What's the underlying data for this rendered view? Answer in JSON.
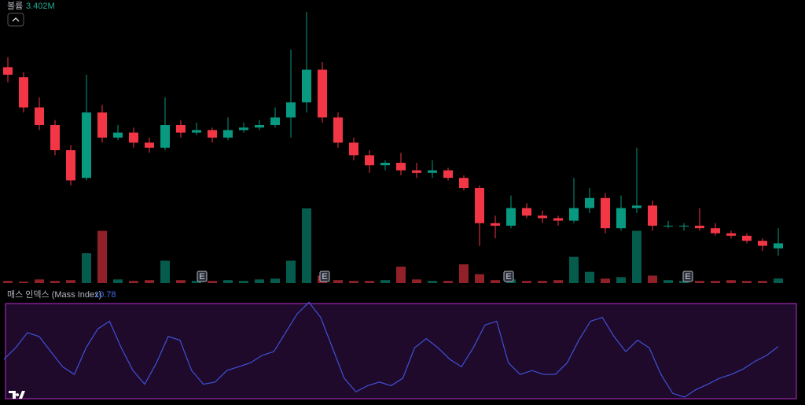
{
  "chart_data": [
    {
      "type": "candlestick",
      "ylim": [
        0,
        100
      ],
      "up_color": "#089981",
      "down_color": "#f23645",
      "ohlc": [
        [
          78,
          82,
          72,
          75
        ],
        [
          74,
          76,
          60,
          62
        ],
        [
          62,
          66,
          53,
          55
        ],
        [
          55,
          57,
          43,
          45
        ],
        [
          45,
          47,
          31,
          33
        ],
        [
          34,
          75,
          33,
          60
        ],
        [
          60,
          63,
          48,
          50
        ],
        [
          50,
          55,
          49,
          52
        ],
        [
          52,
          54,
          46,
          48
        ],
        [
          48,
          50,
          44,
          46
        ],
        [
          46,
          66,
          45,
          55
        ],
        [
          55,
          57,
          50,
          52
        ],
        [
          52,
          56,
          51,
          53
        ],
        [
          53,
          54,
          48,
          50
        ],
        [
          50,
          58,
          49,
          53
        ],
        [
          53,
          56,
          52,
          54
        ],
        [
          54,
          57,
          53,
          55
        ],
        [
          55,
          62,
          54,
          58
        ],
        [
          58,
          85,
          50,
          64
        ],
        [
          64,
          100,
          60,
          77
        ],
        [
          77,
          80,
          56,
          58
        ],
        [
          58,
          60,
          46,
          48
        ],
        [
          48,
          50,
          41,
          43
        ],
        [
          43,
          45,
          36,
          39
        ],
        [
          39,
          41,
          37,
          40
        ],
        [
          40,
          44,
          35,
          37
        ],
        [
          37,
          40,
          34,
          36
        ],
        [
          36,
          41,
          34,
          37
        ],
        [
          37,
          38,
          33,
          34
        ],
        [
          34,
          35,
          29,
          30
        ],
        [
          30,
          31,
          7,
          16
        ],
        [
          16,
          19,
          10,
          15
        ],
        [
          15,
          27,
          14,
          22
        ],
        [
          22,
          24,
          18,
          19
        ],
        [
          19,
          21,
          16,
          18
        ],
        [
          18,
          19,
          15,
          17
        ],
        [
          17,
          34,
          16,
          22
        ],
        [
          22,
          30,
          20,
          26
        ],
        [
          26,
          28,
          12,
          14
        ],
        [
          14,
          27,
          13,
          22
        ],
        [
          22,
          46,
          20,
          23
        ],
        [
          23,
          25,
          13,
          15
        ],
        [
          15,
          17,
          14,
          15
        ],
        [
          15,
          16,
          13,
          15
        ],
        [
          15,
          22,
          13,
          14
        ],
        [
          14,
          16,
          11,
          12
        ],
        [
          12,
          13,
          10,
          11
        ],
        [
          11,
          12,
          8,
          9
        ],
        [
          9,
          10,
          5,
          7
        ],
        [
          6,
          14,
          3,
          8
        ]
      ]
    },
    {
      "type": "volume",
      "title": "볼륨",
      "legend_value": {
        "value": 3.402,
        "label": "3.402M"
      },
      "ylim": [
        0,
        55
      ],
      "values": [
        1.6,
        1.1,
        2.7,
        1.6,
        2.2,
        22,
        38.5,
        2.7,
        1.6,
        2.2,
        16.5,
        2.2,
        1.6,
        1.6,
        2.2,
        1.6,
        2.7,
        3.3,
        16.5,
        55,
        5.5,
        2.2,
        1.6,
        1.6,
        2.2,
        12.1,
        2.7,
        1.6,
        1.6,
        13.8,
        6.6,
        2.2,
        2.7,
        1.6,
        1.6,
        2.2,
        19.3,
        8.3,
        3.3,
        4.4,
        38.5,
        5.5,
        2.2,
        1.6,
        1.6,
        1.6,
        2.2,
        1.6,
        1.6,
        3.402
      ],
      "markers": [
        "E",
        "E",
        "E",
        "E"
      ]
    },
    {
      "type": "line",
      "title": "매스 인덱스 (Mass Index)",
      "legend_value": 10.78,
      "color": "#3f51d8",
      "ylim": [
        8,
        13.4
      ],
      "values": [
        10.08,
        10.71,
        11.54,
        11.33,
        10.5,
        9.67,
        9.25,
        10.71,
        11.75,
        12.17,
        10.71,
        9.46,
        8.71,
        9.88,
        11.33,
        11.13,
        9.46,
        8.71,
        8.83,
        9.46,
        9.67,
        9.88,
        10.29,
        10.5,
        11.54,
        12.58,
        13.21,
        12.38,
        10.71,
        9.04,
        8.29,
        8.63,
        8.83,
        8.63,
        9.04,
        10.71,
        11.21,
        10.71,
        10.08,
        9.67,
        10.71,
        11.96,
        12.17,
        9.88,
        9.25,
        9.46,
        9.25,
        9.25,
        9.88,
        11.13,
        12.17,
        12.38,
        11.33,
        10.5,
        11.13,
        10.71,
        9.25,
        8.21,
        8.0,
        8.42,
        8.71,
        9.04,
        9.25,
        9.54,
        9.96,
        10.29,
        10.78
      ]
    }
  ]
}
